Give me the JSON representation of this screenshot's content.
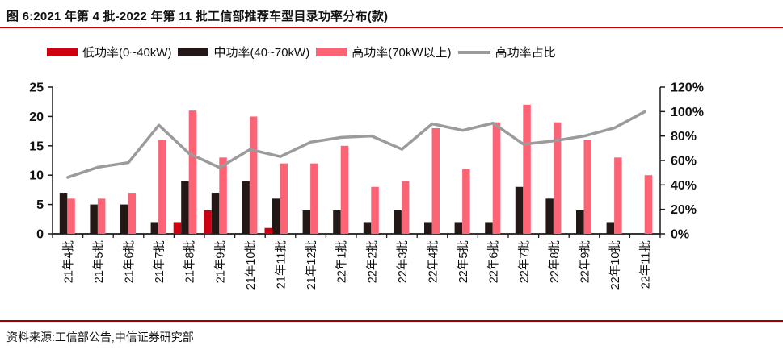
{
  "header": {
    "title": "图 6:2021 年第 4 批-2022 年第 11 批工信部推荐车型目录功率分布(款)"
  },
  "footer": {
    "source": "资料来源:工信部公告,中信证券研究部"
  },
  "colors": {
    "low_power": "#cc0011",
    "mid_power": "#231815",
    "high_power": "#fc6476",
    "ratio_line": "#9b9b9b",
    "title_rule": "#c00000",
    "source_rule": "#a00000",
    "axis": "#1a1a1a"
  },
  "chart_data": {
    "type": "bar",
    "title": "2021年第4批-2022年第11批工信部推荐车型目录功率分布(款)",
    "categories": [
      "21年4批",
      "21年5批",
      "21年6批",
      "21年7批",
      "21年8批",
      "21年9批",
      "21年10批",
      "21年11批",
      "21年12批",
      "22年1批",
      "22年2批",
      "22年3批",
      "22年4批",
      "22年5批",
      "22年6批",
      "22年7批",
      "22年8批",
      "22年9批",
      "22年10批",
      "22年11批"
    ],
    "series": [
      {
        "name": "低功率(0~40kW)",
        "type": "bar",
        "axis": "left",
        "color": "#cc0011",
        "values": [
          0,
          0,
          0,
          0,
          2,
          4,
          0,
          1,
          0,
          0,
          0,
          0,
          0,
          0,
          0,
          0,
          0,
          0,
          0,
          0
        ]
      },
      {
        "name": "中功率(40~70kW)",
        "type": "bar",
        "axis": "left",
        "color": "#231815",
        "values": [
          7,
          5,
          5,
          2,
          9,
          7,
          9,
          6,
          4,
          4,
          2,
          4,
          2,
          2,
          2,
          8,
          6,
          4,
          2,
          0
        ]
      },
      {
        "name": "高功率(70kW以上)",
        "type": "bar",
        "axis": "left",
        "color": "#fc6476",
        "values": [
          6,
          6,
          7,
          16,
          21,
          13,
          20,
          12,
          12,
          15,
          8,
          9,
          18,
          11,
          19,
          22,
          19,
          16,
          13,
          10
        ]
      },
      {
        "name": "高功率占比",
        "type": "line",
        "axis": "right",
        "color": "#9b9b9b",
        "values": [
          46.2,
          54.5,
          58.3,
          88.9,
          65.6,
          54.2,
          69.0,
          63.2,
          75.0,
          78.9,
          80.0,
          69.2,
          90.0,
          84.6,
          90.5,
          73.3,
          76.0,
          80.0,
          86.7,
          100.0
        ]
      }
    ],
    "left_axis": {
      "range": [
        0,
        25
      ],
      "ticks": [
        0,
        5,
        10,
        15,
        20,
        25
      ],
      "tick_labels": [
        "0",
        "5",
        "10",
        "15",
        "20",
        "25"
      ]
    },
    "right_axis": {
      "range": [
        0,
        120
      ],
      "ticks": [
        0,
        20,
        40,
        60,
        80,
        100,
        120
      ],
      "tick_labels": [
        "0%",
        "20%",
        "40%",
        "60%",
        "80%",
        "100%",
        "120%"
      ]
    },
    "legend_position": "top",
    "grid": false
  }
}
